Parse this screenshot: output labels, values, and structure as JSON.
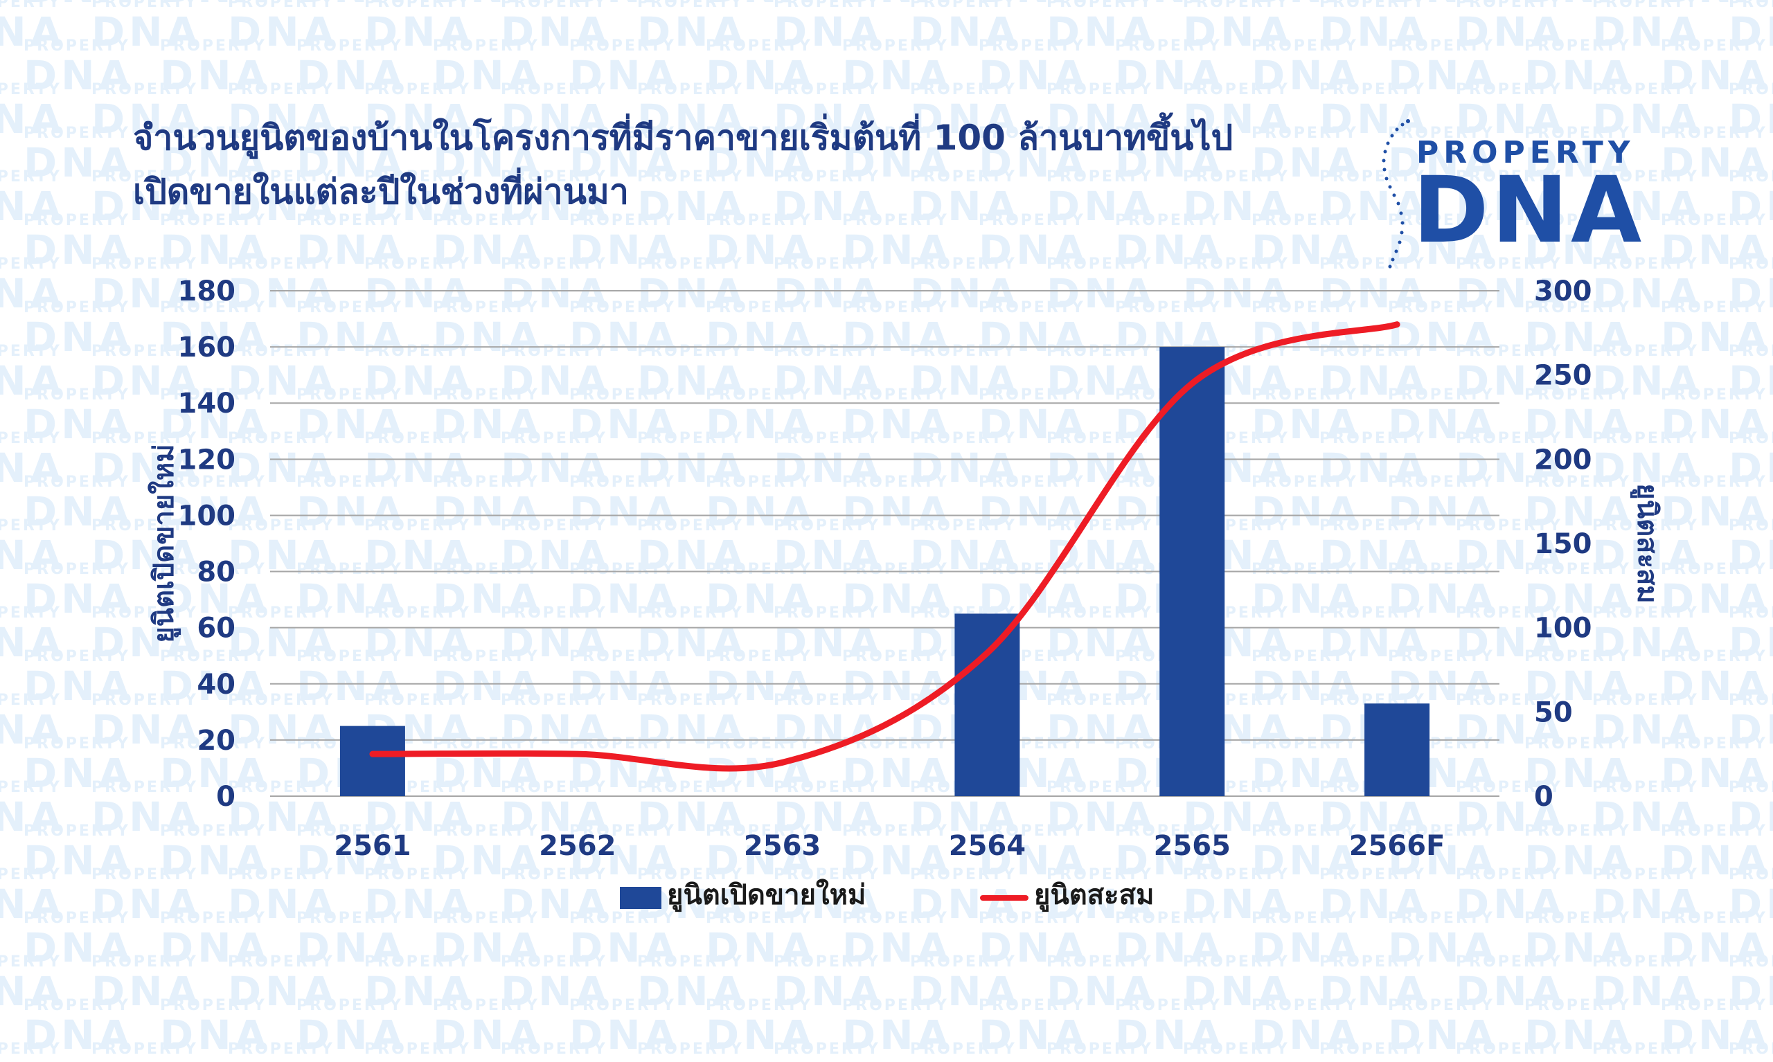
{
  "watermark": {
    "small": "PROPERTY",
    "big": "DNA"
  },
  "title": {
    "line1": "จำนวนยูนิตของบ้านในโครงการที่มีราคาขายเริ่มต้นที่ 100 ล้านบาทขึ้นไป",
    "line2": "เปิดขายในแต่ละปีในช่วงที่ผ่านมา"
  },
  "logo": {
    "top": "PROPERTY",
    "bottom": "DNA"
  },
  "colors": {
    "bar": "#1f4898",
    "line": "#ee1c25",
    "title": "#1f3a82",
    "axis_text": "#1f3a82",
    "grid": "#a6a6a6",
    "watermark": "#e4f0fb"
  },
  "chart_data": {
    "type": "bar",
    "categories": [
      "2561",
      "2562",
      "2563",
      "2564",
      "2565",
      "2566F"
    ],
    "series": [
      {
        "name": "ยูนิตเปิดขายใหม่",
        "type": "bar",
        "axis": "left",
        "values": [
          25,
          0,
          0,
          65,
          160,
          33
        ]
      },
      {
        "name": "ยูนิตสะสม",
        "type": "line",
        "axis": "right",
        "values": [
          25,
          25,
          20,
          85,
          245,
          280
        ]
      }
    ],
    "y_left": {
      "label": "ยูนิตเปิดขายใหม่",
      "min": 0,
      "max": 180,
      "ticks": [
        "0",
        "20",
        "40",
        "60",
        "80",
        "100",
        "120",
        "140",
        "160",
        "180"
      ]
    },
    "y_right": {
      "label": "ยูนิตสะสม",
      "min": 0,
      "max": 300,
      "ticks": [
        "0",
        "50",
        "100",
        "150",
        "200",
        "250",
        "300"
      ]
    },
    "grid": true,
    "legend_position": "bottom"
  }
}
